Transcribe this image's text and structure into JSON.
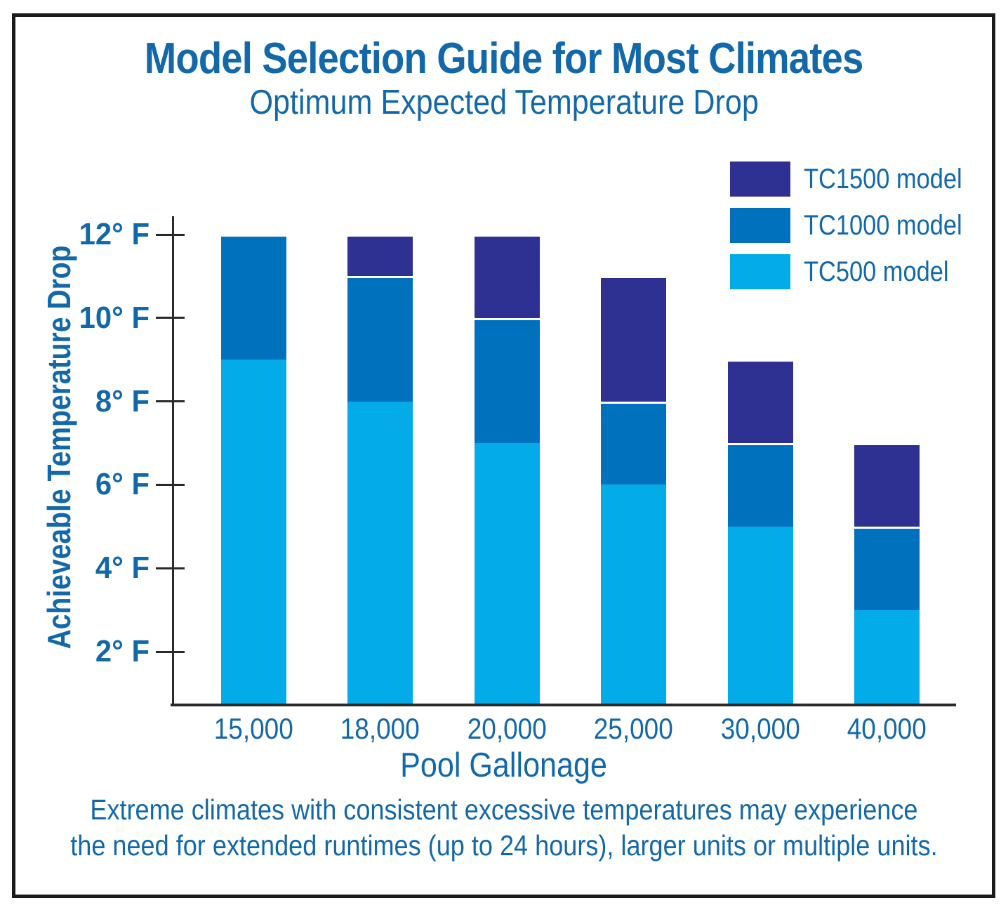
{
  "footer": {
    "line1": "Extreme climates with consistent excessive temperatures may experience",
    "line2": "the need for extended runtimes (up to 24 hours), larger units or multiple units."
  },
  "colors": {
    "text_blue": "#1268A9",
    "tc1500": "#2E3192",
    "tc1000": "#0071BC",
    "tc500": "#03ABE9",
    "axis": "#2B2A2A",
    "frame_border": "#1A1A1A"
  },
  "chart_data": {
    "type": "bar",
    "stacked": true,
    "title": "Model Selection Guide for Most Climates",
    "subtitle": "Optimum Expected Temperature Drop",
    "xlabel": "Pool Gallonage",
    "ylabel": "Achieveable Temperature Drop",
    "categories": [
      "15,000",
      "18,000",
      "20,000",
      "25,000",
      "30,000",
      "40,000"
    ],
    "series": [
      {
        "name": "TC500 model",
        "color": "#03ABE9",
        "values": [
          9,
          8,
          7,
          6,
          5,
          3
        ]
      },
      {
        "name": "TC1000 model",
        "color": "#0071BC",
        "values": [
          3,
          3,
          3,
          2,
          2,
          2
        ]
      },
      {
        "name": "TC1500 model",
        "color": "#2E3192",
        "values": [
          0,
          1,
          2,
          3,
          2,
          2
        ]
      }
    ],
    "stack_totals": [
      12,
      12,
      12,
      11,
      9,
      7
    ],
    "y_tick_values": [
      2,
      4,
      6,
      8,
      10,
      12
    ],
    "y_ticks": [
      "2° F",
      "4° F",
      "6° F",
      "8° F",
      "10° F",
      "12° F"
    ],
    "ylim": [
      0,
      12
    ],
    "grid": false,
    "legend_position": "top-right",
    "legend": [
      {
        "label": "TC1500 model",
        "color": "#2E3192"
      },
      {
        "label": "TC1000 model",
        "color": "#0071BC"
      },
      {
        "label": "TC500 model",
        "color": "#03ABE9"
      }
    ]
  }
}
